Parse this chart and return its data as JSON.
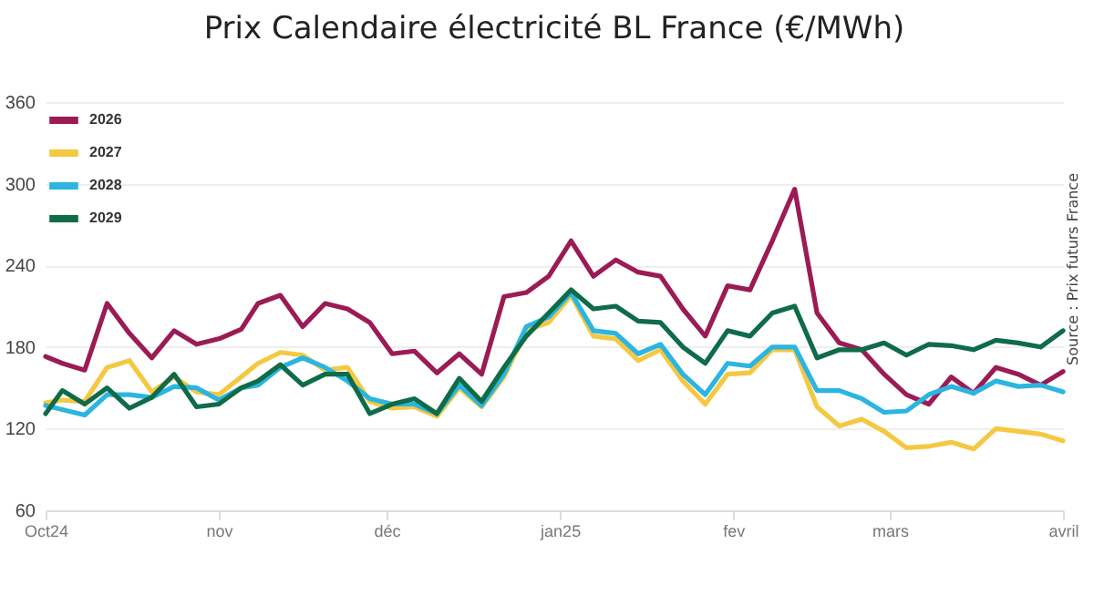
{
  "chart_data": {
    "type": "line",
    "title": "Prix Calendaire électricité BL France (€/MWh)",
    "annotations": [
      "Source : Prix futurs France"
    ],
    "x": [
      "2024-10-01",
      "2024-10-04",
      "2024-10-08",
      "2024-10-12",
      "2024-10-16",
      "2024-10-20",
      "2024-10-24",
      "2024-10-28",
      "2024-11-01",
      "2024-11-05",
      "2024-11-08",
      "2024-11-12",
      "2024-11-16",
      "2024-11-20",
      "2024-11-24",
      "2024-11-28",
      "2024-12-02",
      "2024-12-06",
      "2024-12-10",
      "2024-12-14",
      "2024-12-18",
      "2024-12-22",
      "2024-12-26",
      "2024-12-30",
      "2025-01-03",
      "2025-01-07",
      "2025-01-11",
      "2025-01-15",
      "2025-01-19",
      "2025-01-23",
      "2025-01-27",
      "2025-01-31",
      "2025-02-04",
      "2025-02-08",
      "2025-02-12",
      "2025-02-16",
      "2025-02-20",
      "2025-02-24",
      "2025-02-28",
      "2025-03-04",
      "2025-03-08",
      "2025-03-12",
      "2025-03-16",
      "2025-03-20",
      "2025-03-24",
      "2025-03-28",
      "2025-04-01"
    ],
    "series": [
      {
        "name": "2026",
        "color": "#9b1b55",
        "values": [
          173,
          168,
          163,
          212,
          190,
          172,
          192,
          182,
          186,
          193,
          212,
          218,
          195,
          212,
          208,
          198,
          175,
          177,
          161,
          175,
          160,
          217,
          220,
          232,
          258,
          232,
          244,
          235,
          232,
          208,
          188,
          225,
          222,
          258,
          296,
          205,
          183,
          178,
          160,
          145,
          138,
          158,
          146,
          165,
          160,
          152,
          162
        ]
      },
      {
        "name": "2027",
        "color": "#f5c842",
        "values": [
          139,
          141,
          140,
          165,
          170,
          147,
          158,
          147,
          145,
          158,
          168,
          176,
          174,
          163,
          165,
          140,
          135,
          136,
          129,
          150,
          136,
          158,
          192,
          198,
          218,
          188,
          186,
          170,
          178,
          155,
          138,
          160,
          161,
          178,
          178,
          136,
          122,
          127,
          118,
          106,
          107,
          110,
          105,
          120,
          118,
          116,
          111
        ]
      },
      {
        "name": "2028",
        "color": "#2bb5e0",
        "values": [
          137,
          134,
          130,
          145,
          145,
          143,
          151,
          150,
          141,
          150,
          152,
          165,
          172,
          165,
          155,
          142,
          138,
          138,
          131,
          152,
          137,
          160,
          195,
          202,
          220,
          192,
          190,
          175,
          182,
          160,
          145,
          168,
          166,
          180,
          180,
          148,
          148,
          142,
          132,
          133,
          145,
          151,
          146,
          155,
          151,
          152,
          147
        ]
      },
      {
        "name": "2029",
        "color": "#0f6b48",
        "values": [
          131,
          148,
          138,
          150,
          135,
          143,
          160,
          136,
          138,
          150,
          155,
          167,
          152,
          160,
          160,
          131,
          138,
          142,
          131,
          157,
          140,
          165,
          188,
          205,
          222,
          208,
          210,
          199,
          198,
          180,
          168,
          192,
          188,
          205,
          210,
          172,
          178,
          178,
          183,
          174,
          182,
          181,
          178,
          185,
          183,
          180,
          192
        ]
      }
    ],
    "xlim": [
      "2024-10-01",
      "2025-04-01"
    ],
    "xticks": [
      {
        "value": "2024-10-01",
        "label": "Oct24"
      },
      {
        "value": "2024-11-01",
        "label": "nov"
      },
      {
        "value": "2024-12-01",
        "label": "déc"
      },
      {
        "value": "2025-01-01",
        "label": "jan25"
      },
      {
        "value": "2025-02-01",
        "label": "fev"
      },
      {
        "value": "2025-03-01",
        "label": "mars"
      },
      {
        "value": "2025-04-01",
        "label": "avril"
      }
    ],
    "ylim": [
      60,
      360
    ],
    "yticks": [
      60,
      120,
      180,
      240,
      300,
      360
    ],
    "grid": "y",
    "legend": "top left",
    "line_style": "solid",
    "marker": "none"
  }
}
